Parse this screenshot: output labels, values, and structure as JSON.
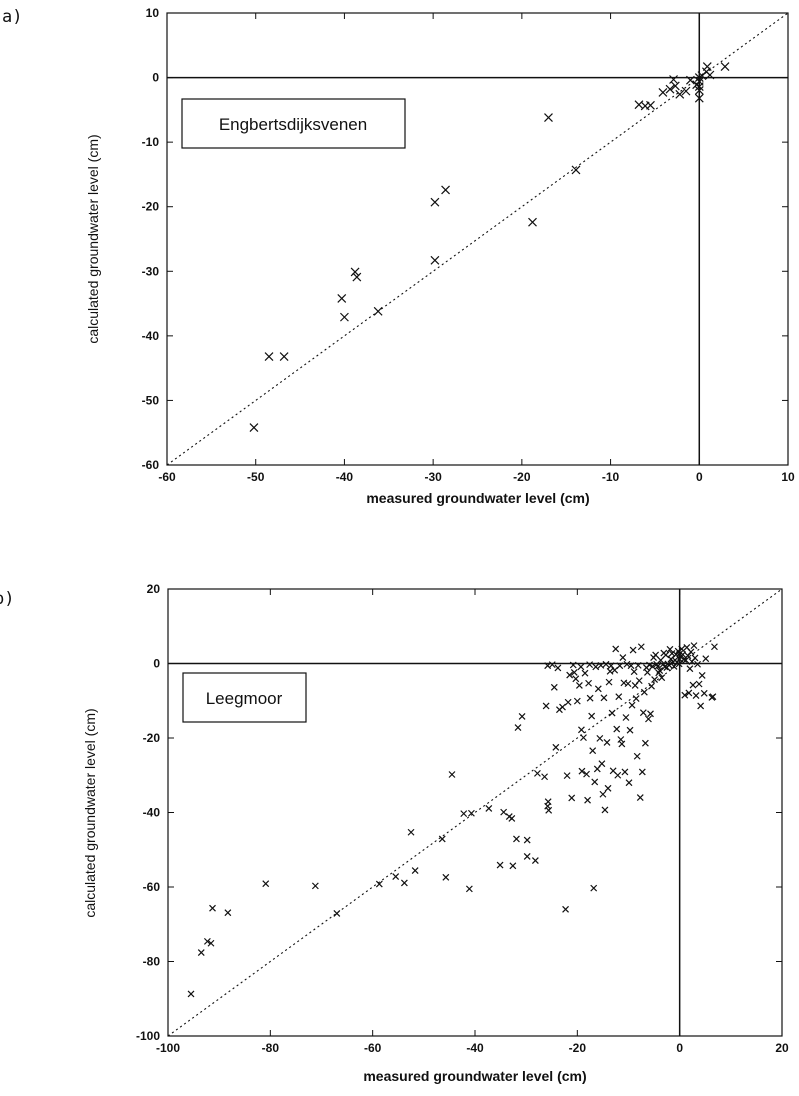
{
  "chart_data": [
    {
      "type": "scatter",
      "panel_letter": "a)",
      "site_label": "Engbertsdijksvenen",
      "xlabel": "measured groundwater level (cm)",
      "ylabel": "calculated groundwater level (cm)",
      "xlim": [
        -60,
        10
      ],
      "ylim": [
        -60,
        10
      ],
      "xticks": [
        -60,
        -50,
        -40,
        -30,
        -20,
        -10,
        0,
        10
      ],
      "yticks": [
        -60,
        -50,
        -40,
        -30,
        -20,
        -10,
        0,
        10
      ],
      "one_to_one_line": true,
      "zero_lines": true,
      "points": [
        [
          -50.2,
          -54.2
        ],
        [
          -48.5,
          -43.2
        ],
        [
          -46.8,
          -43.2
        ],
        [
          -40.3,
          -34.2
        ],
        [
          -40.0,
          -37.1
        ],
        [
          -38.8,
          -30.1
        ],
        [
          -38.6,
          -30.9
        ],
        [
          -36.2,
          -36.2
        ],
        [
          -29.8,
          -28.3
        ],
        [
          -29.8,
          -19.3
        ],
        [
          -28.6,
          -17.4
        ],
        [
          -18.8,
          -22.4
        ],
        [
          -17.0,
          -6.2
        ],
        [
          -13.9,
          -14.3
        ],
        [
          -6.8,
          -4.2
        ],
        [
          -6.1,
          -4.4
        ],
        [
          -5.5,
          -4.3
        ],
        [
          -4.1,
          -2.3
        ],
        [
          -3.3,
          -1.8
        ],
        [
          -2.9,
          -0.3
        ],
        [
          -2.7,
          -1.3
        ],
        [
          -2.2,
          -2.6
        ],
        [
          -1.5,
          -2.1
        ],
        [
          -1.0,
          -0.4
        ],
        [
          -0.3,
          -1.1
        ],
        [
          0.0,
          -3.2
        ],
        [
          0.0,
          -2.0
        ],
        [
          0.0,
          -1.4
        ],
        [
          0.0,
          -0.6
        ],
        [
          0.0,
          0.0
        ],
        [
          0.3,
          0.3
        ],
        [
          0.8,
          0.9
        ],
        [
          0.9,
          1.7
        ],
        [
          1.2,
          0.4
        ],
        [
          2.9,
          1.7
        ]
      ]
    },
    {
      "type": "scatter",
      "panel_letter": "b)",
      "site_label": "Leegmoor",
      "xlabel": "measured groundwater level (cm)",
      "ylabel": "calculated groundwater level (cm)",
      "xlim": [
        -100,
        20
      ],
      "ylim": [
        -100,
        20
      ],
      "xticks": [
        -100,
        -80,
        -60,
        -40,
        -20,
        0,
        20
      ],
      "yticks": [
        -100,
        -80,
        -60,
        -40,
        -20,
        0,
        20
      ],
      "one_to_one_line": true,
      "zero_lines": true,
      "points": [
        [
          -95.5,
          -88.7
        ],
        [
          -93.5,
          -77.6
        ],
        [
          -92.3,
          -74.6
        ],
        [
          -91.6,
          -75.1
        ],
        [
          -91.3,
          -65.7
        ],
        [
          -88.3,
          -66.9
        ],
        [
          -80.9,
          -59.1
        ],
        [
          -71.2,
          -59.7
        ],
        [
          -67.0,
          -67.1
        ],
        [
          -58.7,
          -59.2
        ],
        [
          -55.5,
          -57.2
        ],
        [
          -53.8,
          -58.9
        ],
        [
          -52.5,
          -45.3
        ],
        [
          -51.7,
          -55.6
        ],
        [
          -46.4,
          -47.1
        ],
        [
          -45.7,
          -57.4
        ],
        [
          -44.5,
          -29.8
        ],
        [
          -42.2,
          -40.3
        ],
        [
          -41.1,
          -60.5
        ],
        [
          -40.7,
          -40.2
        ],
        [
          -37.3,
          -38.9
        ],
        [
          -35.1,
          -54.1
        ],
        [
          -34.4,
          -39.9
        ],
        [
          -33.3,
          -41.1
        ],
        [
          -32.6,
          -54.3
        ],
        [
          -32.8,
          -41.6
        ],
        [
          -31.9,
          -47.1
        ],
        [
          -31.6,
          -17.2
        ],
        [
          -30.8,
          -14.2
        ],
        [
          -29.8,
          -47.4
        ],
        [
          -29.8,
          -51.8
        ],
        [
          -28.2,
          -52.9
        ],
        [
          -27.8,
          -29.5
        ],
        [
          -26.4,
          -30.4
        ],
        [
          -26.1,
          -11.4
        ],
        [
          -25.8,
          -38.3
        ],
        [
          -25.7,
          -37.1
        ],
        [
          -25.6,
          -39.4
        ],
        [
          -25.8,
          -0.6
        ],
        [
          -24.9,
          -0.3
        ],
        [
          -24.5,
          -6.4
        ],
        [
          -24.2,
          -22.5
        ],
        [
          -23.8,
          -1.2
        ],
        [
          -23.5,
          -12.4
        ],
        [
          -22.9,
          -11.7
        ],
        [
          -22.3,
          -66.0
        ],
        [
          -22.0,
          -30.1
        ],
        [
          -21.8,
          -10.4
        ],
        [
          -21.5,
          -3.1
        ],
        [
          -21.1,
          -36.1
        ],
        [
          -20.8,
          -0.4
        ],
        [
          -20.6,
          -2.4
        ],
        [
          -20.3,
          -4.1
        ],
        [
          -20.0,
          -10.1
        ],
        [
          -19.6,
          -5.9
        ],
        [
          -19.3,
          -0.9
        ],
        [
          -19.2,
          -17.8
        ],
        [
          -19.1,
          -28.9
        ],
        [
          -18.8,
          -19.9
        ],
        [
          -18.5,
          -2.6
        ],
        [
          -18.2,
          -29.7
        ],
        [
          -18.0,
          -36.7
        ],
        [
          -17.8,
          -5.3
        ],
        [
          -17.6,
          -0.3
        ],
        [
          -17.5,
          -9.3
        ],
        [
          -17.2,
          -14.1
        ],
        [
          -17.0,
          -23.4
        ],
        [
          -16.8,
          -60.3
        ],
        [
          -16.6,
          -31.8
        ],
        [
          -16.4,
          -0.9
        ],
        [
          -16.1,
          -28.3
        ],
        [
          -15.9,
          -6.8
        ],
        [
          -15.6,
          -20.1
        ],
        [
          -15.4,
          -0.5
        ],
        [
          -15.2,
          -26.9
        ],
        [
          -15.0,
          -35.1
        ],
        [
          -14.8,
          -9.2
        ],
        [
          -14.6,
          -39.3
        ],
        [
          -14.4,
          -0.2
        ],
        [
          -14.2,
          -21.2
        ],
        [
          -14.0,
          -33.5
        ],
        [
          -13.8,
          -5.0
        ],
        [
          -13.6,
          -2.1
        ],
        [
          -13.4,
          -0.6
        ],
        [
          -13.2,
          -13.3
        ],
        [
          -13.0,
          -28.8
        ],
        [
          -12.7,
          -1.8
        ],
        [
          -12.5,
          3.9
        ],
        [
          -12.3,
          -17.6
        ],
        [
          -12.1,
          -30.0
        ],
        [
          -11.9,
          -8.9
        ],
        [
          -11.7,
          -0.6
        ],
        [
          -11.5,
          -20.4
        ],
        [
          -11.3,
          -21.6
        ],
        [
          -11.1,
          1.6
        ],
        [
          -10.9,
          -5.2
        ],
        [
          -10.7,
          -29.1
        ],
        [
          -10.5,
          -14.5
        ],
        [
          -10.3,
          -0.2
        ],
        [
          -10.1,
          -5.4
        ],
        [
          -9.9,
          -32.0
        ],
        [
          -9.7,
          -17.9
        ],
        [
          -9.5,
          -0.6
        ],
        [
          -9.3,
          -11.2
        ],
        [
          -9.1,
          3.6
        ],
        [
          -8.9,
          -2.2
        ],
        [
          -8.7,
          -5.9
        ],
        [
          -8.5,
          -9.4
        ],
        [
          -8.3,
          -24.9
        ],
        [
          -8.1,
          -0.5
        ],
        [
          -7.9,
          -4.6
        ],
        [
          -7.7,
          -36.0
        ],
        [
          -7.5,
          4.5
        ],
        [
          -7.3,
          -29.1
        ],
        [
          -7.1,
          -13.2
        ],
        [
          -6.9,
          -7.7
        ],
        [
          -6.7,
          -21.4
        ],
        [
          -6.5,
          -1.1
        ],
        [
          -6.3,
          -2.4
        ],
        [
          -6.1,
          -14.9
        ],
        [
          -5.9,
          -0.4
        ],
        [
          -5.7,
          -13.5
        ],
        [
          -5.5,
          -6.1
        ],
        [
          -5.3,
          -0.8
        ],
        [
          -5.1,
          1.6
        ],
        [
          -4.9,
          -4.3
        ],
        [
          -4.7,
          2.3
        ],
        [
          -4.5,
          -0.2
        ],
        [
          -4.3,
          -0.8
        ],
        [
          -4.1,
          -2.5
        ],
        [
          -3.9,
          -1.9
        ],
        [
          -3.7,
          0.9
        ],
        [
          -3.5,
          -3.8
        ],
        [
          -3.3,
          -0.3
        ],
        [
          -3.1,
          2.8
        ],
        [
          -2.9,
          -0.9
        ],
        [
          -2.7,
          2.3
        ],
        [
          -2.5,
          -1.1
        ],
        [
          -2.3,
          -0.1
        ],
        [
          -2.1,
          -0.4
        ],
        [
          -1.9,
          3.8
        ],
        [
          -1.7,
          1.2
        ],
        [
          -1.5,
          2.7
        ],
        [
          -1.3,
          0.4
        ],
        [
          -1.1,
          -0.8
        ],
        [
          -0.9,
          0.9
        ],
        [
          -0.7,
          2.4
        ],
        [
          -0.5,
          0.3
        ],
        [
          -0.3,
          3.3
        ],
        [
          -0.1,
          -0.1
        ],
        [
          0.0,
          1.2
        ],
        [
          0.0,
          2.6
        ],
        [
          0.2,
          1.8
        ],
        [
          0.4,
          3.9
        ],
        [
          0.6,
          2.4
        ],
        [
          0.8,
          1.1
        ],
        [
          1.0,
          -8.5
        ],
        [
          1.2,
          0.9
        ],
        [
          1.4,
          4.3
        ],
        [
          1.6,
          2.1
        ],
        [
          1.8,
          -7.9
        ],
        [
          2.0,
          -1.4
        ],
        [
          2.2,
          3.1
        ],
        [
          2.4,
          0.5
        ],
        [
          2.6,
          -5.8
        ],
        [
          2.8,
          4.8
        ],
        [
          3.0,
          1.5
        ],
        [
          3.2,
          -8.6
        ],
        [
          3.5,
          -0.2
        ],
        [
          3.8,
          -5.5
        ],
        [
          4.1,
          -11.4
        ],
        [
          4.4,
          -3.2
        ],
        [
          4.8,
          -8.0
        ],
        [
          5.1,
          1.3
        ],
        [
          6.3,
          -9.1
        ],
        [
          6.5,
          -8.9
        ],
        [
          6.8,
          4.5
        ]
      ]
    }
  ]
}
